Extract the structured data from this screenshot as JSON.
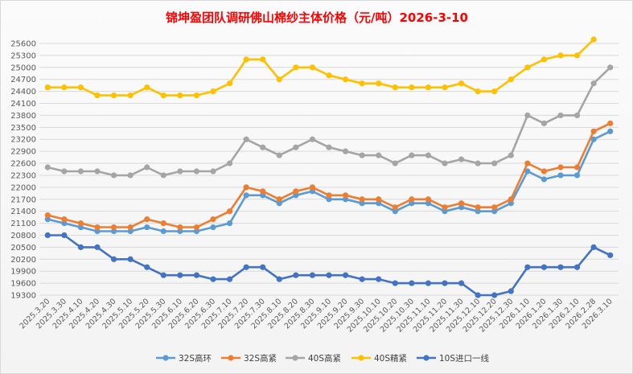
{
  "chart_data": {
    "type": "line",
    "title": "锦坤盈团队调研佛山棉纱主体价格（元/吨）2026-3-10",
    "xlabel": "",
    "ylabel": "",
    "ylim": [
      19300,
      25600
    ],
    "yticks": [
      19300,
      19600,
      19900,
      20200,
      20500,
      20800,
      21100,
      21400,
      21700,
      22000,
      22300,
      22600,
      22900,
      23200,
      23500,
      23800,
      24100,
      24400,
      24700,
      25000,
      25300,
      25600
    ],
    "grid": true,
    "legend_position": "bottom",
    "categories": [
      "2025.3.20",
      "2025.3.30",
      "2025.4.10",
      "2025.4.20",
      "2025.4.30",
      "2025.5.10",
      "2025.5.20",
      "2025.5.30",
      "2025.6.10",
      "2025.6.20",
      "2025.6.30",
      "2025.7.10",
      "2025.7.20",
      "2025.7.30",
      "2025.8.10",
      "2025.8.20",
      "2025.8.30",
      "2025.9.10",
      "2025.9.20",
      "2025.9.30",
      "2025.10.10",
      "2025.10.20",
      "2025.10.30",
      "2025.11.10",
      "2025.11.20",
      "2025.11.30",
      "2025.12.10",
      "2025.12.20",
      "2025.12.30",
      "2026.1.10",
      "2026.1.20",
      "2026.1.30",
      "2026.2.10",
      "2026.2.28",
      "2026.3.10"
    ],
    "series": [
      {
        "name": "32S高环",
        "color": "#5b9bd5",
        "values": [
          21200,
          21100,
          21000,
          20900,
          20900,
          20900,
          21000,
          20900,
          20900,
          20900,
          21000,
          21100,
          21800,
          21800,
          21600,
          21800,
          21900,
          21700,
          21700,
          21600,
          21600,
          21400,
          21600,
          21600,
          21400,
          21500,
          21400,
          21400,
          21600,
          22400,
          22200,
          22300,
          22300,
          23200,
          23400
        ]
      },
      {
        "name": "32S高紧",
        "color": "#ed7d31",
        "values": [
          21300,
          21200,
          21100,
          21000,
          21000,
          21000,
          21200,
          21100,
          21000,
          21000,
          21200,
          21400,
          22000,
          21900,
          21700,
          21900,
          22000,
          21800,
          21800,
          21700,
          21700,
          21500,
          21700,
          21700,
          21500,
          21600,
          21500,
          21500,
          21700,
          22600,
          22400,
          22500,
          22500,
          23400,
          23600
        ]
      },
      {
        "name": "40S高紧",
        "color": "#a5a5a5",
        "values": [
          22500,
          22400,
          22400,
          22400,
          22300,
          22300,
          22500,
          22300,
          22400,
          22400,
          22400,
          22600,
          23200,
          23000,
          22800,
          23000,
          23200,
          23000,
          22900,
          22800,
          22800,
          22600,
          22800,
          22800,
          22600,
          22700,
          22600,
          22600,
          22800,
          23800,
          23600,
          23800,
          23800,
          24600,
          25000
        ]
      },
      {
        "name": "40S精紧",
        "color": "#ffc000",
        "values": [
          24500,
          24500,
          24500,
          24300,
          24300,
          24300,
          24500,
          24300,
          24300,
          24300,
          24400,
          24600,
          25200,
          25200,
          24700,
          25000,
          25000,
          24800,
          24700,
          24600,
          24600,
          24500,
          24500,
          24500,
          24500,
          24600,
          24400,
          24400,
          24700,
          25000,
          25200,
          25300,
          25300,
          25700,
          null
        ]
      },
      {
        "name": "10S进口一线",
        "color": "#4472c4",
        "values": [
          20800,
          20800,
          20500,
          20500,
          20200,
          20200,
          20000,
          19800,
          19800,
          19800,
          19700,
          19700,
          20000,
          20000,
          19700,
          19800,
          19800,
          19800,
          19800,
          19700,
          19700,
          19600,
          19600,
          19600,
          19600,
          19600,
          19300,
          19300,
          19400,
          20000,
          20000,
          20000,
          20000,
          20500,
          20300
        ]
      }
    ]
  }
}
